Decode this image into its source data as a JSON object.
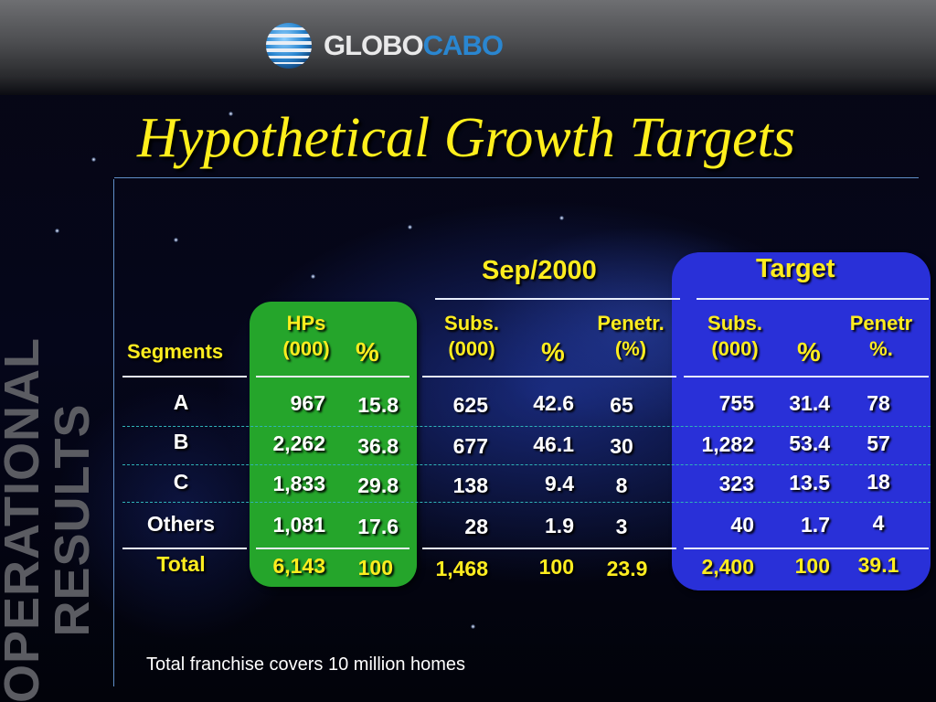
{
  "logo": {
    "part1": "GLOBO",
    "part2": "CABO",
    "icon": "globe-stripes-icon"
  },
  "title": "Hypothetical Growth Targets",
  "side_label": {
    "line1": "OPERATIONAL",
    "line2": "RESULTS"
  },
  "groups": {
    "sep2000": "Sep/2000",
    "target": "Target"
  },
  "headers": {
    "segments": "Segments",
    "hps_line1": "HPs",
    "hps_line2": "(000)",
    "hps_pct": "%",
    "sep_subs_line1": "Subs.",
    "sep_subs_line2": "(000)",
    "sep_pct": "%",
    "sep_pen_line1": "Penetr.",
    "sep_pen_line2": "(%)",
    "tgt_subs_line1": "Subs.",
    "tgt_subs_line2": "(000)",
    "tgt_pct": "%",
    "tgt_pen_line1": "Penetr",
    "tgt_pen_line2": "%."
  },
  "rows": [
    {
      "segment": "A",
      "hps": "967",
      "hps_pct": "15.8",
      "sep_subs": "625",
      "sep_pct": "42.6",
      "sep_pen": "65",
      "tgt_subs": "755",
      "tgt_pct": "31.4",
      "tgt_pen": "78"
    },
    {
      "segment": "B",
      "hps": "2,262",
      "hps_pct": "36.8",
      "sep_subs": "677",
      "sep_pct": "46.1",
      "sep_pen": "30",
      "tgt_subs": "1,282",
      "tgt_pct": "53.4",
      "tgt_pen": "57"
    },
    {
      "segment": "C",
      "hps": "1,833",
      "hps_pct": "29.8",
      "sep_subs": "138",
      "sep_pct": "9.4",
      "sep_pen": "8",
      "tgt_subs": "323",
      "tgt_pct": "13.5",
      "tgt_pen": "18"
    },
    {
      "segment": "Others",
      "hps": "1,081",
      "hps_pct": "17.6",
      "sep_subs": "28",
      "sep_pct": "1.9",
      "sep_pen": "3",
      "tgt_subs": "40",
      "tgt_pct": "1.7",
      "tgt_pen": "4"
    },
    {
      "segment": "Total",
      "hps": "6,143",
      "hps_pct": "100",
      "sep_subs": "1,468",
      "sep_pct": "100",
      "sep_pen": "23.9",
      "tgt_subs": "2,400",
      "tgt_pct": "100",
      "tgt_pen": "39.1"
    }
  ],
  "footnote": "Total franchise covers 10 million homes",
  "colors": {
    "title": "#ffef1c",
    "green_panel": "#25a52b",
    "blue_panel": "#2930d8",
    "highlight_text": "#ffed1f"
  }
}
